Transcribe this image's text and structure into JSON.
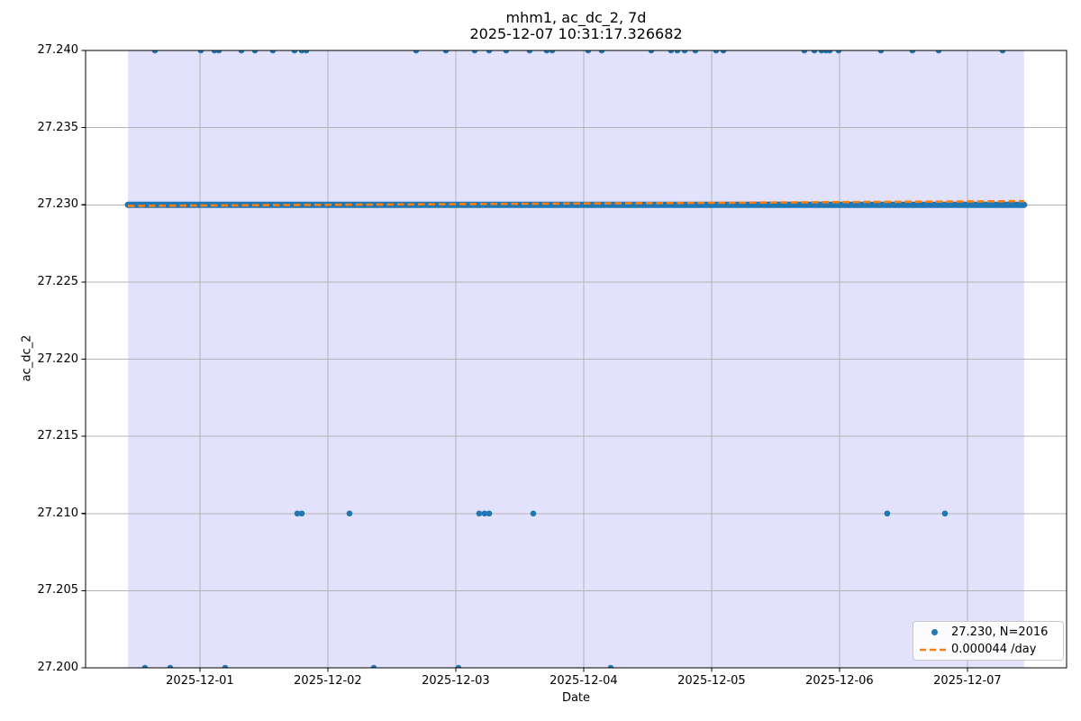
{
  "chart_data": {
    "type": "scatter",
    "title": "mhm1, ac_dc_2, 7d",
    "subtitle": "2025-12-07 10:31:17.326682",
    "xlabel": "Date",
    "ylabel": "ac_dc_2",
    "ylim": [
      27.2,
      27.24
    ],
    "y_tick_labels": [
      "27.200",
      "27.205",
      "27.210",
      "27.215",
      "27.220",
      "27.225",
      "27.230",
      "27.235",
      "27.240"
    ],
    "x_tick_labels": [
      "2025-12-01",
      "2025-12-02",
      "2025-12-03",
      "2025-12-04",
      "2025-12-05",
      "2025-12-06",
      "2025-12-07"
    ],
    "x_tick_days": [
      0,
      1,
      2,
      3,
      4,
      5,
      6
    ],
    "xlim_days": [
      -0.894,
      6.775
    ],
    "grid": true,
    "grid_color": "#b3b3b3",
    "legend_position": "lower right",
    "window_span": {
      "start_day": -0.563,
      "end_day": 6.443,
      "fill_color": "#e2e2fc"
    },
    "series": [
      {
        "name": "27.230, N=2016",
        "color": "#1f77b4",
        "marker": "dot",
        "n_points": 2016,
        "band": {
          "y": 27.23,
          "start_day": -0.563,
          "end_day": 6.443
        },
        "outliers": [
          {
            "y": 27.24,
            "days": [
              -0.352,
              0.007,
              0.113,
              0.148,
              0.324,
              0.43,
              0.57,
              0.739,
              0.796,
              0.831,
              1.69,
              1.923,
              2.148,
              2.261,
              2.394,
              2.577,
              2.711,
              2.754,
              3.035,
              3.141,
              3.528,
              3.683,
              3.732,
              3.789,
              3.873,
              4.035,
              4.092,
              4.725,
              4.803,
              4.859,
              4.894,
              4.923,
              4.993,
              5.324,
              5.57,
              5.775,
              6.275
            ]
          },
          {
            "y": 27.21,
            "days": [
              0.761,
              0.796,
              1.169,
              2.183,
              2.225,
              2.261,
              2.606,
              5.373,
              5.824
            ]
          },
          {
            "y": 27.2,
            "days": [
              -0.43,
              -0.232,
              0.197,
              1.359,
              2.021,
              3.211
            ]
          }
        ]
      },
      {
        "name": "0.000044 /day",
        "color": "#ff7f0e",
        "style": "dashed",
        "slope_per_day": 4.4e-05,
        "trend": {
          "start_day": -0.563,
          "start_value": 27.22993,
          "end_day": 6.443,
          "end_value": 27.23024
        }
      }
    ]
  }
}
